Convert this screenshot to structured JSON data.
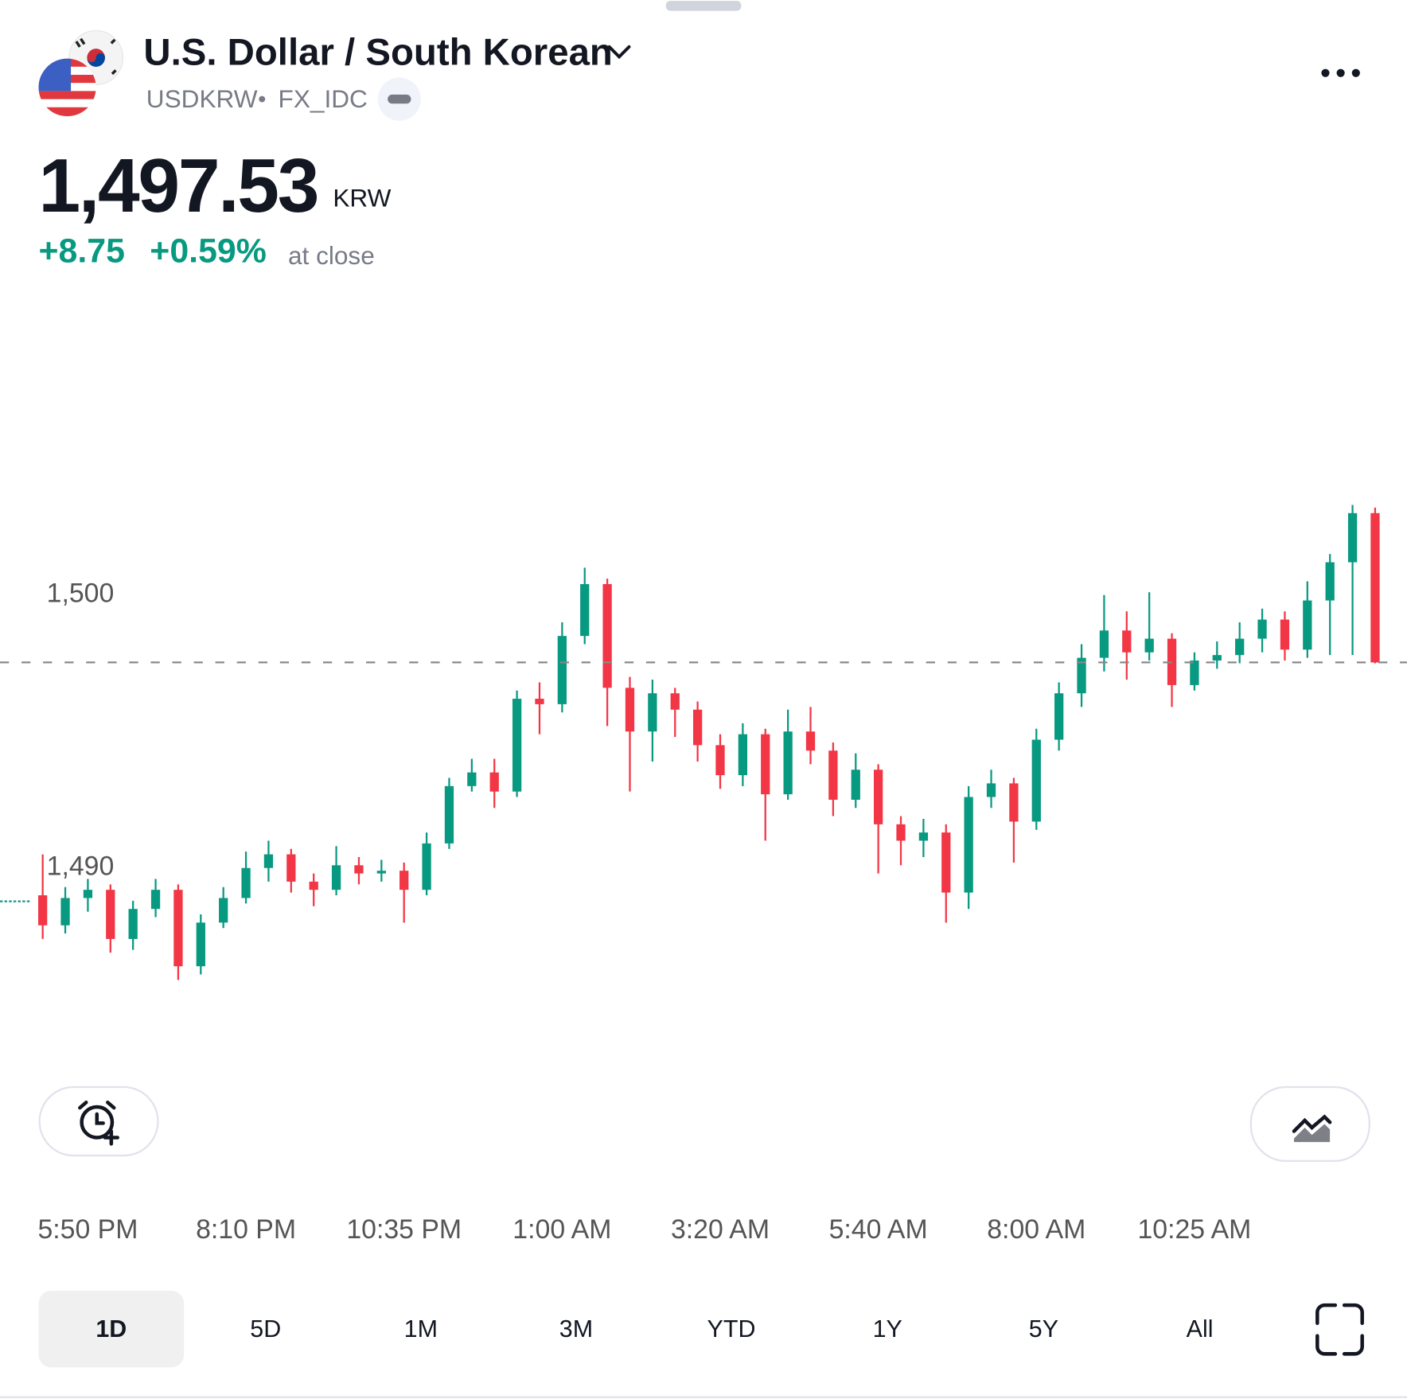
{
  "header": {
    "title": "U.S. Dollar / South Korean",
    "symbol": "USDKRW",
    "exchange": "FX_IDC",
    "price": "1,497.53",
    "currency": "KRW",
    "change": "+8.75",
    "change_percent": "+0.59%",
    "status": "at close"
  },
  "chart_data": {
    "type": "candlestick",
    "categories": [
      null,
      null,
      "5:50 PM",
      null,
      null,
      null,
      null,
      null,
      null,
      "8:10 PM",
      null,
      null,
      null,
      null,
      null,
      null,
      "10:35 PM",
      null,
      null,
      null,
      null,
      null,
      null,
      "1:00 AM",
      null,
      null,
      null,
      null,
      null,
      null,
      "3:20 AM",
      null,
      null,
      null,
      null,
      null,
      null,
      "5:40 AM",
      null,
      null,
      null,
      null,
      null,
      null,
      "8:00 AM",
      null,
      null,
      null,
      null,
      null,
      null,
      "10:25 AM",
      null,
      null,
      null,
      null,
      null,
      null,
      null,
      null
    ],
    "open": [
      1489.0,
      1487.9,
      1488.9,
      1489.2,
      1487.4,
      1488.5,
      1489.2,
      1486.4,
      1488.0,
      1488.9,
      1490.0,
      1490.5,
      1489.5,
      1489.2,
      1490.1,
      1489.8,
      1489.9,
      1489.2,
      1490.9,
      1493.0,
      1493.5,
      1492.8,
      1496.2,
      1496.0,
      1498.5,
      1500.4,
      1496.6,
      1495.0,
      1496.4,
      1495.8,
      1494.5,
      1493.4,
      1494.9,
      1492.7,
      1495.0,
      1494.3,
      1492.5,
      1493.6,
      1491.6,
      1491.0,
      1491.3,
      1489.1,
      1492.6,
      1493.1,
      1491.7,
      1494.7,
      1496.4,
      1497.7,
      1498.7,
      1497.9,
      1498.4,
      1496.7,
      1497.6,
      1497.8,
      1498.4,
      1499.1,
      1498.0,
      1499.8,
      1501.2,
      1503.0
    ],
    "high": [
      1490.5,
      1489.3,
      1489.6,
      1489.4,
      1488.8,
      1489.6,
      1489.4,
      1488.3,
      1489.3,
      1490.6,
      1491.0,
      1490.7,
      1489.8,
      1490.8,
      1490.4,
      1490.3,
      1490.2,
      1491.3,
      1493.3,
      1494.0,
      1494.0,
      1496.5,
      1496.8,
      1499.0,
      1501.0,
      1500.6,
      1497.0,
      1496.9,
      1496.6,
      1496.1,
      1494.9,
      1495.3,
      1495.1,
      1495.8,
      1495.9,
      1494.6,
      1494.2,
      1493.8,
      1491.9,
      1491.8,
      1491.6,
      1493.0,
      1493.6,
      1493.3,
      1495.1,
      1496.8,
      1498.2,
      1500.0,
      1499.4,
      1500.1,
      1498.6,
      1497.9,
      1498.3,
      1499.0,
      1499.5,
      1499.4,
      1500.5,
      1501.5,
      1503.3,
      1503.2
    ],
    "low": [
      1487.4,
      1487.6,
      1488.4,
      1486.9,
      1487.0,
      1488.2,
      1485.9,
      1486.1,
      1487.8,
      1488.7,
      1489.5,
      1489.1,
      1488.6,
      1489.0,
      1489.4,
      1489.5,
      1488.0,
      1489.0,
      1490.7,
      1492.8,
      1492.2,
      1492.6,
      1494.9,
      1495.7,
      1498.2,
      1495.2,
      1492.8,
      1493.9,
      1494.8,
      1493.9,
      1492.9,
      1493.0,
      1491.0,
      1492.5,
      1493.8,
      1491.9,
      1492.2,
      1489.8,
      1490.1,
      1490.4,
      1488.0,
      1488.5,
      1492.2,
      1490.2,
      1491.4,
      1494.3,
      1495.9,
      1497.2,
      1496.9,
      1497.6,
      1495.9,
      1496.5,
      1497.3,
      1497.5,
      1497.9,
      1497.6,
      1497.7,
      1497.8,
      1497.8,
      1497.5
    ],
    "close": [
      1487.9,
      1488.9,
      1489.2,
      1487.4,
      1488.5,
      1489.2,
      1486.4,
      1488.0,
      1488.9,
      1490.0,
      1490.5,
      1489.5,
      1489.2,
      1490.1,
      1489.8,
      1489.9,
      1489.2,
      1490.9,
      1493.0,
      1493.5,
      1492.8,
      1496.2,
      1496.0,
      1498.5,
      1500.4,
      1496.6,
      1495.0,
      1496.4,
      1495.8,
      1494.5,
      1493.4,
      1494.9,
      1492.7,
      1495.0,
      1494.3,
      1492.5,
      1493.6,
      1491.6,
      1491.0,
      1491.3,
      1489.1,
      1492.6,
      1493.1,
      1491.7,
      1494.7,
      1496.4,
      1497.7,
      1498.7,
      1497.9,
      1498.4,
      1496.7,
      1497.6,
      1497.8,
      1498.4,
      1499.1,
      1498.0,
      1499.8,
      1501.2,
      1503.0,
      1497.53
    ],
    "previous_close": 1488.78,
    "ylim": [
      1482.8,
      1510.9
    ],
    "yticks": [
      {
        "value": 1490,
        "label": "1,490"
      },
      {
        "value": 1500,
        "label": "1,500"
      }
    ],
    "up_color": "#089981",
    "down_color": "#f23645"
  },
  "ranges": {
    "items": [
      "1D",
      "5D",
      "1M",
      "3M",
      "YTD",
      "1Y",
      "5Y",
      "All"
    ],
    "active": "1D"
  }
}
